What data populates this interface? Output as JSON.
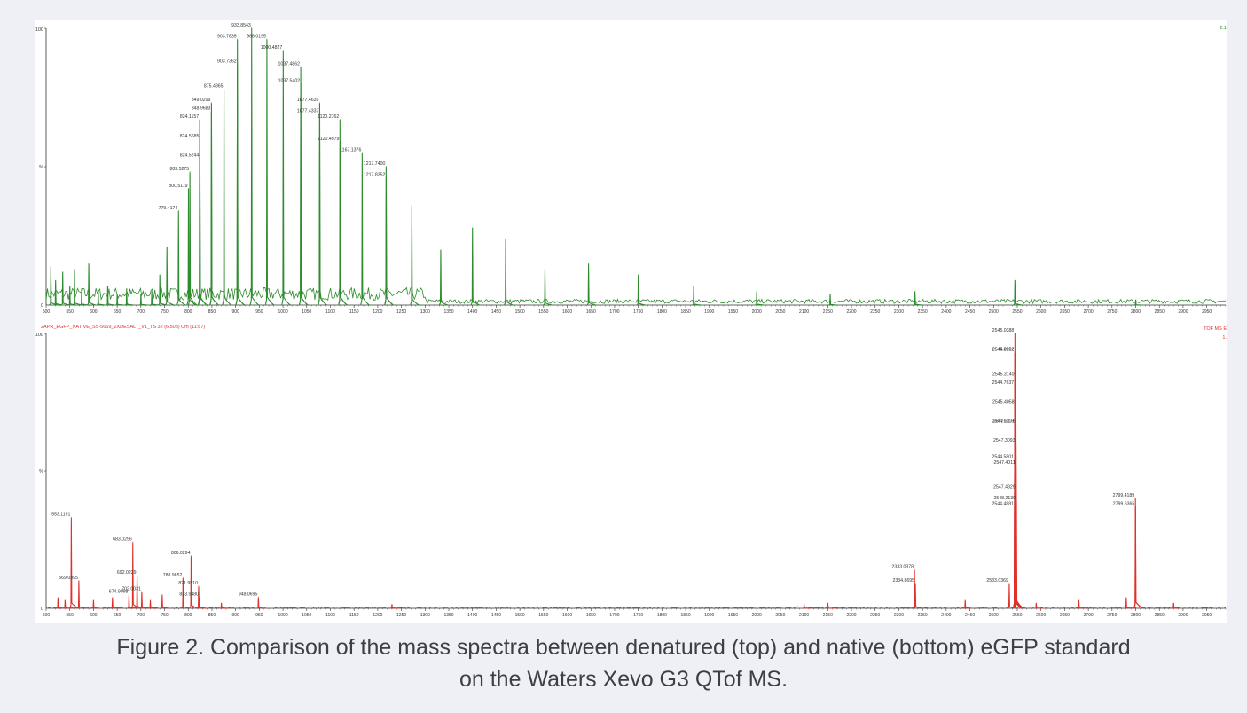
{
  "figure": {
    "caption_line1": "Figure 2. Comparison of the mass spectra between denatured (top) and native (bottom) eGFP standard",
    "caption_line2": "on the Waters Xevo G3 QTof MS."
  },
  "colors": {
    "top_spectrum": "#2e8b2e",
    "bottom_spectrum": "#e0302a",
    "axis": "#333333",
    "background": "#eef0f5"
  },
  "chart_data": [
    {
      "type": "line",
      "panel": "top",
      "xlim": [
        500,
        2990
      ],
      "ylim": [
        0,
        100
      ],
      "x_ticks": [
        500,
        550,
        600,
        650,
        700,
        750,
        800,
        850,
        900,
        950,
        1000,
        1050,
        1100,
        1150,
        1200,
        1250,
        1300,
        1350,
        1400,
        1450,
        1500,
        1550,
        1600,
        1650,
        1700,
        1750,
        1800,
        1850,
        1900,
        1950,
        2000,
        2050,
        2100,
        2150,
        2200,
        2250,
        2300,
        2350,
        2400,
        2450,
        2500,
        2550,
        2600,
        2650,
        2700,
        2750,
        2800,
        2850,
        2900,
        2950
      ],
      "y_tick_labels": [
        "100",
        "%",
        "0"
      ],
      "right_corner_label": "2.1",
      "baseline": 2.5,
      "peaks": [
        {
          "x": 510,
          "y": 14
        },
        {
          "x": 520,
          "y": 9
        },
        {
          "x": 535,
          "y": 12
        },
        {
          "x": 550,
          "y": 7
        },
        {
          "x": 560,
          "y": 13
        },
        {
          "x": 575,
          "y": 6
        },
        {
          "x": 590,
          "y": 15
        },
        {
          "x": 610,
          "y": 5
        },
        {
          "x": 630,
          "y": 7
        },
        {
          "x": 650,
          "y": 4
        },
        {
          "x": 670,
          "y": 6
        },
        {
          "x": 700,
          "y": 4
        },
        {
          "x": 723,
          "y": 5
        },
        {
          "x": 740,
          "y": 11
        },
        {
          "x": 755,
          "y": 21
        },
        {
          "x": 779.4174,
          "y": 34,
          "label": "779.4174"
        },
        {
          "x": 800.5119,
          "y": 42,
          "label": "800.5119"
        },
        {
          "x": 803.5275,
          "y": 48,
          "label": "803.5275"
        },
        {
          "x": 824.5244,
          "y": 53,
          "label": "824.5244"
        },
        {
          "x": 824.5685,
          "y": 60,
          "label": "824.5685"
        },
        {
          "x": 824.1157,
          "y": 67,
          "label": "824.1157"
        },
        {
          "x": 848.9683,
          "y": 70,
          "label": "848.9683"
        },
        {
          "x": 849.0299,
          "y": 73,
          "label": "849.0299"
        },
        {
          "x": 875.4865,
          "y": 78,
          "label": "875.4865"
        },
        {
          "x": 903.7362,
          "y": 87,
          "label": "903.7362"
        },
        {
          "x": 903.7835,
          "y": 96,
          "label": "903.7835"
        },
        {
          "x": 933.8543,
          "y": 100,
          "label": "933.8543"
        },
        {
          "x": 966.0195,
          "y": 96,
          "label": "966.0195"
        },
        {
          "x": 1000.4827,
          "y": 92,
          "label": "1000.4827"
        },
        {
          "x": 1037.4862,
          "y": 86,
          "label": "1037.4862"
        },
        {
          "x": 1037.5402,
          "y": 80,
          "label": "1037.5402"
        },
        {
          "x": 1077.4639,
          "y": 73,
          "label": "1077.4639"
        },
        {
          "x": 1077.4337,
          "y": 69,
          "label": "1077.4337"
        },
        {
          "x": 1120.2762,
          "y": 67,
          "label": "1120.2762"
        },
        {
          "x": 1120.4979,
          "y": 59,
          "label": "1120.4979"
        },
        {
          "x": 1167.1376,
          "y": 55,
          "label": "1167.1376"
        },
        {
          "x": 1217.74,
          "y": 50,
          "label": "1217.7400"
        },
        {
          "x": 1217.8352,
          "y": 46,
          "label": "1217.8352"
        },
        {
          "x": 1272,
          "y": 36
        },
        {
          "x": 1333,
          "y": 20
        },
        {
          "x": 1400,
          "y": 28
        },
        {
          "x": 1470,
          "y": 24
        },
        {
          "x": 1553,
          "y": 13
        },
        {
          "x": 1645,
          "y": 15
        },
        {
          "x": 1750,
          "y": 11
        },
        {
          "x": 1867,
          "y": 7
        },
        {
          "x": 2000,
          "y": 5
        },
        {
          "x": 2155,
          "y": 4
        },
        {
          "x": 2334,
          "y": 5
        },
        {
          "x": 2545,
          "y": 9
        },
        {
          "x": 2800,
          "y": 2
        }
      ]
    },
    {
      "type": "line",
      "panel": "bottom",
      "title": "2APR_EGFP_NATIVE_SS-5669_2XDESALT_V1_TS 32 (6.508) Cm (11:87)",
      "right_corner_label": "TOF MS E",
      "right_corner_sub": "1.",
      "xlim": [
        500,
        2990
      ],
      "ylim": [
        0,
        100
      ],
      "x_ticks": [
        500,
        550,
        600,
        650,
        700,
        750,
        800,
        850,
        900,
        950,
        1000,
        1050,
        1100,
        1150,
        1200,
        1250,
        1300,
        1350,
        1400,
        1450,
        1500,
        1550,
        1600,
        1650,
        1700,
        1750,
        1800,
        1850,
        1900,
        1950,
        2000,
        2050,
        2100,
        2150,
        2200,
        2250,
        2300,
        2350,
        2400,
        2450,
        2500,
        2550,
        2600,
        2650,
        2700,
        2750,
        2800,
        2850,
        2900,
        2950
      ],
      "y_tick_labels": [
        "100",
        "%",
        "0"
      ],
      "baseline": 0.8,
      "peaks": [
        {
          "x": 525,
          "y": 4
        },
        {
          "x": 540,
          "y": 3
        },
        {
          "x": 553.1191,
          "y": 33,
          "label": "553.1191"
        },
        {
          "x": 569.0895,
          "y": 10,
          "label": "569.0895"
        },
        {
          "x": 600,
          "y": 3
        },
        {
          "x": 640,
          "y": 4
        },
        {
          "x": 674.9098,
          "y": 5,
          "label": "674.9098"
        },
        {
          "x": 683.0296,
          "y": 24,
          "label": "683.0296"
        },
        {
          "x": 692.0229,
          "y": 12,
          "label": "692.0229"
        },
        {
          "x": 702.0031,
          "y": 6,
          "label": "702.0031"
        },
        {
          "x": 720,
          "y": 3
        },
        {
          "x": 745,
          "y": 5
        },
        {
          "x": 788.9652,
          "y": 11,
          "label": "788.9652"
        },
        {
          "x": 806.0294,
          "y": 19,
          "label": "806.0294"
        },
        {
          "x": 821.951,
          "y": 8,
          "label": "821.9510"
        },
        {
          "x": 823.948,
          "y": 4,
          "label": "823.9480"
        },
        {
          "x": 870,
          "y": 2
        },
        {
          "x": 948.0695,
          "y": 4,
          "label": "948.0695"
        },
        {
          "x": 1230,
          "y": 1.5
        },
        {
          "x": 2100,
          "y": 1.5
        },
        {
          "x": 2150,
          "y": 2
        },
        {
          "x": 2333.0378,
          "y": 14,
          "label": "2333.0378"
        },
        {
          "x": 2334.8695,
          "y": 9,
          "label": "2334.8695"
        },
        {
          "x": 2440,
          "y": 3
        },
        {
          "x": 2533.0369,
          "y": 9,
          "label": "2533.0369"
        },
        {
          "x": 2544.4881,
          "y": 37,
          "label": "2544.4881"
        },
        {
          "x": 2544.5801,
          "y": 54,
          "label": "2544.5801"
        },
        {
          "x": 2544.6719,
          "y": 67,
          "label": "2544.6719"
        },
        {
          "x": 2544.7637,
          "y": 81,
          "label": "2544.7637"
        },
        {
          "x": 2544.8552,
          "y": 93,
          "label": "2544.8552"
        },
        {
          "x": 2545.0388,
          "y": 100,
          "label": "2545.0388"
        },
        {
          "x": 2545.2222,
          "y": 93,
          "label": "2545.2222"
        },
        {
          "x": 2545.314,
          "y": 84,
          "label": "2545.3140"
        },
        {
          "x": 2545.4058,
          "y": 74,
          "label": "2545.4058"
        },
        {
          "x": 2547.2178,
          "y": 67,
          "label": "2547.2178"
        },
        {
          "x": 2547.3093,
          "y": 60,
          "label": "2547.3093"
        },
        {
          "x": 2547.4011,
          "y": 52,
          "label": "2547.4011"
        },
        {
          "x": 2547.4929,
          "y": 43,
          "label": "2547.4929"
        },
        {
          "x": 2548.2139,
          "y": 39,
          "label": "2548.2139"
        },
        {
          "x": 2590,
          "y": 2
        },
        {
          "x": 2680,
          "y": 3
        },
        {
          "x": 2780,
          "y": 4
        },
        {
          "x": 2799.4189,
          "y": 40,
          "label": "2799.4189"
        },
        {
          "x": 2799.6365,
          "y": 37,
          "label": "2799.6365"
        },
        {
          "x": 2880,
          "y": 2
        }
      ]
    }
  ]
}
